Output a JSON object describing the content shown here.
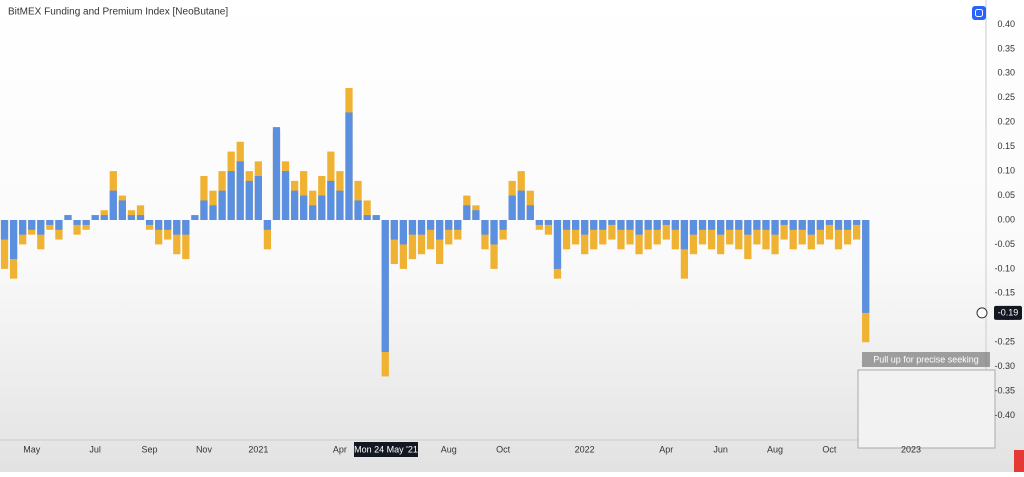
{
  "chart_data": {
    "type": "bar",
    "title": "BitMEX Funding and Premium Index [NeoButane]",
    "categories": [
      null,
      null,
      null,
      "May",
      null,
      null,
      null,
      null,
      null,
      null,
      "Jul",
      null,
      null,
      null,
      null,
      null,
      "Sep",
      null,
      null,
      null,
      null,
      null,
      "Nov",
      null,
      null,
      null,
      null,
      null,
      "2021",
      null,
      null,
      null,
      null,
      null,
      null,
      null,
      null,
      "Apr",
      null,
      null,
      null,
      null,
      null,
      null,
      null,
      null,
      null,
      null,
      null,
      "Aug",
      null,
      null,
      null,
      null,
      null,
      "Oct",
      null,
      null,
      null,
      null,
      null,
      null,
      null,
      null,
      "2022",
      null,
      null,
      null,
      null,
      null,
      null,
      null,
      null,
      "Apr",
      null,
      null,
      null,
      null,
      null,
      "Jun",
      null,
      null,
      null,
      null,
      null,
      "Aug",
      null,
      null,
      null,
      null,
      null,
      "Oct",
      null,
      null,
      null,
      null,
      null,
      null,
      null,
      null,
      "2023",
      null,
      null,
      null,
      null,
      null,
      null,
      null
    ],
    "series": [
      {
        "color": "#f0b232",
        "values": [
          -0.1,
          -0.12,
          -0.05,
          -0.03,
          -0.06,
          -0.02,
          -0.04,
          0.01,
          -0.03,
          -0.02,
          0.01,
          0.02,
          0.1,
          0.05,
          0.02,
          0.03,
          -0.02,
          -0.05,
          -0.04,
          -0.07,
          -0.08,
          0.01,
          0.09,
          0.06,
          0.1,
          0.14,
          0.16,
          0.1,
          0.12,
          -0.06,
          0.18,
          0.12,
          0.08,
          0.1,
          0.06,
          0.09,
          0.14,
          0.1,
          0.27,
          0.08,
          0.04,
          0.01,
          -0.32,
          -0.09,
          -0.1,
          -0.08,
          -0.07,
          -0.06,
          -0.09,
          -0.05,
          -0.04,
          0.05,
          0.03,
          -0.06,
          -0.1,
          -0.04,
          0.08,
          0.1,
          0.06,
          -0.02,
          -0.03,
          -0.12,
          -0.06,
          -0.05,
          -0.07,
          -0.06,
          -0.05,
          -0.04,
          -0.06,
          -0.05,
          -0.07,
          -0.06,
          -0.05,
          -0.04,
          -0.06,
          -0.12,
          -0.07,
          -0.05,
          -0.06,
          -0.07,
          -0.05,
          -0.06,
          -0.08,
          -0.05,
          -0.06,
          -0.07,
          -0.04,
          -0.06,
          -0.05,
          -0.06,
          -0.05,
          -0.04,
          -0.06,
          -0.05,
          -0.04,
          -0.25,
          null,
          null,
          null,
          null,
          null,
          null,
          null,
          null,
          null,
          null,
          null,
          null
        ]
      },
      {
        "color": "#5b8fe0",
        "values": [
          -0.04,
          -0.08,
          -0.03,
          -0.02,
          -0.03,
          -0.01,
          -0.02,
          0.01,
          -0.01,
          -0.01,
          0.01,
          0.01,
          0.06,
          0.04,
          0.01,
          0.01,
          -0.01,
          -0.02,
          -0.02,
          -0.03,
          -0.03,
          0.01,
          0.04,
          0.03,
          0.06,
          0.1,
          0.12,
          0.08,
          0.09,
          -0.02,
          0.19,
          0.1,
          0.06,
          0.05,
          0.03,
          0.05,
          0.08,
          0.06,
          0.22,
          0.04,
          0.01,
          0.01,
          -0.27,
          -0.04,
          -0.05,
          -0.03,
          -0.03,
          -0.02,
          -0.04,
          -0.02,
          -0.02,
          0.03,
          0.02,
          -0.03,
          -0.05,
          -0.02,
          0.05,
          0.06,
          0.03,
          -0.01,
          -0.01,
          -0.1,
          -0.02,
          -0.02,
          -0.03,
          -0.02,
          -0.02,
          -0.01,
          -0.02,
          -0.02,
          -0.03,
          -0.02,
          -0.02,
          -0.01,
          -0.02,
          -0.06,
          -0.03,
          -0.02,
          -0.02,
          -0.03,
          -0.02,
          -0.02,
          -0.03,
          -0.02,
          -0.02,
          -0.03,
          -0.01,
          -0.02,
          -0.02,
          -0.03,
          -0.02,
          -0.01,
          -0.02,
          -0.02,
          -0.01,
          -0.19,
          null,
          null,
          null,
          null,
          null,
          null,
          null,
          null,
          null,
          null,
          null,
          null
        ]
      }
    ],
    "ylim": [
      -0.45,
      0.45
    ],
    "yticks": [
      {
        "value": 0.4,
        "label": "0.40"
      },
      {
        "value": 0.35,
        "label": "0.35"
      },
      {
        "value": 0.3,
        "label": "0.30"
      },
      {
        "value": 0.25,
        "label": "0.25"
      },
      {
        "value": 0.2,
        "label": "0.20"
      },
      {
        "value": 0.15,
        "label": "0.15"
      },
      {
        "value": 0.1,
        "label": "0.10"
      },
      {
        "value": 0.05,
        "label": "0.05"
      },
      {
        "value": 0,
        "label": "0.00"
      },
      {
        "value": -0.05,
        "label": "-0.05"
      },
      {
        "value": -0.1,
        "label": "-0.10"
      },
      {
        "value": -0.15,
        "label": "-0.15"
      },
      {
        "value": -0.2,
        "label": "-0.20"
      },
      {
        "value": -0.25,
        "label": "-0.25"
      },
      {
        "value": -0.3,
        "label": "-0.30"
      },
      {
        "value": -0.35,
        "label": "-0.35"
      },
      {
        "value": -0.4,
        "label": "-0.40"
      }
    ],
    "last_value": -0.19,
    "crosshair_label": "Mon 24 May '21",
    "seek_hint": "Pull up for precise seeking"
  }
}
